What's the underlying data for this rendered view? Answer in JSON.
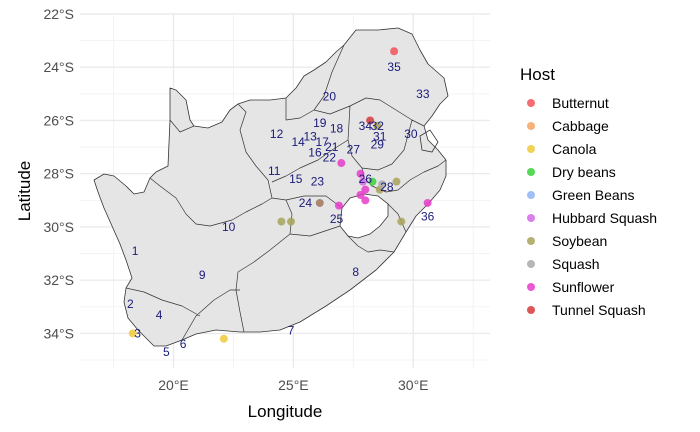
{
  "chart_data": {
    "type": "scatter",
    "title": "",
    "xlabel": "Longitude",
    "ylabel": "Latitude",
    "xlim": [
      16.1,
      33.2
    ],
    "ylim": [
      -35.3,
      -22.0
    ],
    "x_ticks": [
      {
        "value": 20,
        "label": "20°E"
      },
      {
        "value": 25,
        "label": "25°E"
      },
      {
        "value": 30,
        "label": "30°E"
      }
    ],
    "y_ticks": [
      {
        "value": -22,
        "label": "22°S"
      },
      {
        "value": -24,
        "label": "24°S"
      },
      {
        "value": -26,
        "label": "26°S"
      },
      {
        "value": -28,
        "label": "28°S"
      },
      {
        "value": -30,
        "label": "30°S"
      },
      {
        "value": -32,
        "label": "32°S"
      },
      {
        "value": -34,
        "label": "34°S"
      }
    ],
    "grid": true,
    "legend": {
      "title": "Host",
      "placement": "right"
    },
    "series": [
      {
        "name": "Butternut",
        "color": "#f2545b",
        "points": [
          [
            29.2,
            -23.4
          ]
        ]
      },
      {
        "name": "Cabbage",
        "color": "#f4a460",
        "points": []
      },
      {
        "name": "Canola",
        "color": "#f0c93a",
        "points": [
          [
            18.3,
            -34.0
          ],
          [
            22.1,
            -34.2
          ]
        ]
      },
      {
        "name": "Dry beans",
        "color": "#3ad13a",
        "points": [
          [
            28.3,
            -28.3
          ]
        ]
      },
      {
        "name": "Green Beans",
        "color": "#8fb4f5",
        "points": []
      },
      {
        "name": "Hubbard Squash",
        "color": "#d46ae6",
        "points": [
          [
            27.9,
            -28.3
          ]
        ]
      },
      {
        "name": "Soybean",
        "color": "#a8a35b",
        "points": [
          [
            24.5,
            -29.8
          ],
          [
            24.9,
            -29.8
          ],
          [
            29.5,
            -29.8
          ],
          [
            29.3,
            -28.3
          ],
          [
            28.6,
            -28.6
          ],
          [
            28.5,
            -26.2
          ]
        ]
      },
      {
        "name": "Squash",
        "color": "#a9a9a9",
        "points": [
          [
            28.7,
            -28.4
          ]
        ]
      },
      {
        "name": "Sunflower",
        "color": "#e63cc9",
        "points": [
          [
            27.0,
            -27.6
          ],
          [
            28.0,
            -28.6
          ],
          [
            27.8,
            -28.0
          ],
          [
            27.8,
            -28.8
          ],
          [
            28.0,
            -29.0
          ],
          [
            26.9,
            -29.2
          ],
          [
            30.6,
            -29.1
          ]
        ]
      },
      {
        "name": "Tunnel Squash",
        "color": "#d63a3a",
        "points": [
          [
            28.2,
            -26.0
          ]
        ]
      },
      {
        "name": "",
        "color": "#a0785a",
        "points": [
          [
            26.1,
            -29.1
          ]
        ]
      }
    ]
  },
  "regions": [
    {
      "id": "1",
      "lon": 18.4,
      "lat": -30.9
    },
    {
      "id": "2",
      "lon": 18.2,
      "lat": -32.9
    },
    {
      "id": "3",
      "lon": 18.5,
      "lat": -34.0
    },
    {
      "id": "4",
      "lon": 19.4,
      "lat": -33.3
    },
    {
      "id": "5",
      "lon": 19.7,
      "lat": -34.7
    },
    {
      "id": "6",
      "lon": 20.4,
      "lat": -34.4
    },
    {
      "id": "7",
      "lon": 24.9,
      "lat": -33.9
    },
    {
      "id": "8",
      "lon": 27.6,
      "lat": -31.7
    },
    {
      "id": "9",
      "lon": 21.2,
      "lat": -31.8
    },
    {
      "id": "10",
      "lon": 22.3,
      "lat": -30.0
    },
    {
      "id": "11",
      "lon": 24.2,
      "lat": -27.9
    },
    {
      "id": "12",
      "lon": 24.3,
      "lat": -26.5
    },
    {
      "id": "13",
      "lon": 25.7,
      "lat": -26.6
    },
    {
      "id": "14",
      "lon": 25.2,
      "lat": -26.8
    },
    {
      "id": "15",
      "lon": 25.1,
      "lat": -28.2
    },
    {
      "id": "16",
      "lon": 25.9,
      "lat": -27.2
    },
    {
      "id": "17",
      "lon": 26.2,
      "lat": -26.8
    },
    {
      "id": "18",
      "lon": 26.8,
      "lat": -26.3
    },
    {
      "id": "19",
      "lon": 26.1,
      "lat": -26.1
    },
    {
      "id": "20",
      "lon": 26.5,
      "lat": -25.1
    },
    {
      "id": "21",
      "lon": 26.6,
      "lat": -27.0
    },
    {
      "id": "22",
      "lon": 26.5,
      "lat": -27.4
    },
    {
      "id": "23",
      "lon": 26.0,
      "lat": -28.3
    },
    {
      "id": "24",
      "lon": 25.5,
      "lat": -29.1
    },
    {
      "id": "25",
      "lon": 26.8,
      "lat": -29.7
    },
    {
      "id": "26",
      "lon": 28.0,
      "lat": -28.2
    },
    {
      "id": "27",
      "lon": 27.5,
      "lat": -27.1
    },
    {
      "id": "28",
      "lon": 28.9,
      "lat": -28.5
    },
    {
      "id": "29",
      "lon": 28.5,
      "lat": -26.9
    },
    {
      "id": "30",
      "lon": 29.9,
      "lat": -26.5
    },
    {
      "id": "31",
      "lon": 28.6,
      "lat": -26.6
    },
    {
      "id": "32",
      "lon": 28.5,
      "lat": -26.2
    },
    {
      "id": "33",
      "lon": 30.4,
      "lat": -25.0
    },
    {
      "id": "34",
      "lon": 28.0,
      "lat": -26.2
    },
    {
      "id": "35",
      "lon": 29.2,
      "lat": -24.0
    },
    {
      "id": "36",
      "lon": 30.6,
      "lat": -29.6
    }
  ],
  "colors": {
    "panel": "#ffffff",
    "grid": "#ebebeb",
    "land": "#e5e5e5",
    "border": "#333333"
  }
}
